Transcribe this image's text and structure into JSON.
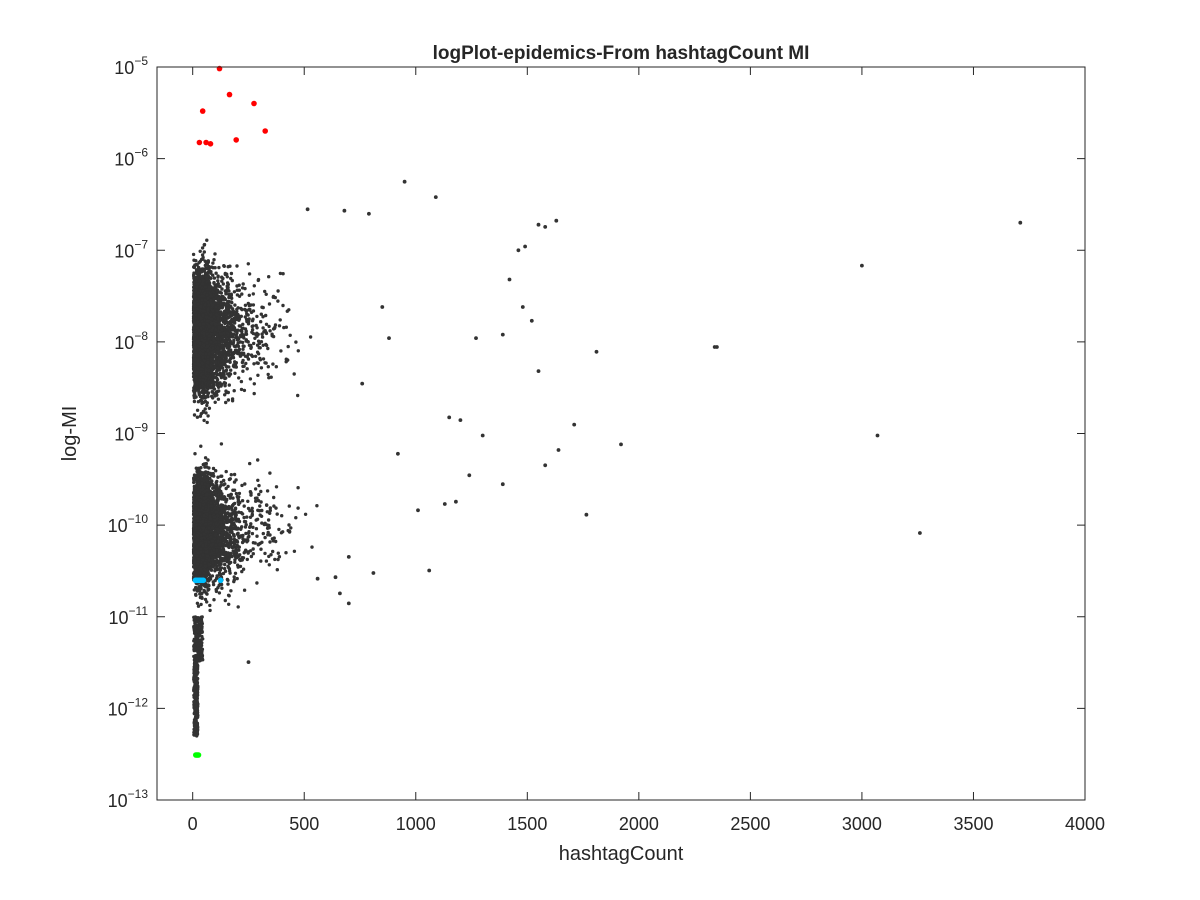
{
  "chart_data": {
    "type": "scatter",
    "title": "logPlot-epidemics-From hashtagCount MI",
    "xlabel": "hashtagCount",
    "ylabel": "log-MI",
    "xlim": [
      -160,
      4000
    ],
    "ylim": [
      1e-13,
      1e-05
    ],
    "y_scale": "log",
    "grid": false,
    "legend": "none",
    "x_ticks": [
      0,
      500,
      1000,
      1500,
      2000,
      2500,
      3000,
      3500,
      4000
    ],
    "x_tick_labels": [
      "0",
      "500",
      "1000",
      "1500",
      "2000",
      "2500",
      "3000",
      "3500",
      "4000"
    ],
    "y_tick_exponents": [
      -13,
      -12,
      -11,
      -10,
      -9,
      -8,
      -7,
      -6,
      -5
    ],
    "y_tick_base": "10",
    "colors": {
      "main": "#333333",
      "top": "#ff0000",
      "tie": "#00bfff",
      "min": "#00ff00",
      "axis": "#262626"
    },
    "series": [
      {
        "color_key": "top",
        "points": [
          [
            120,
            9.6e-06
          ],
          [
            165,
            5e-06
          ],
          [
            275,
            4e-06
          ],
          [
            45,
            3.3e-06
          ],
          [
            325,
            2e-06
          ],
          [
            195,
            1.6e-06
          ],
          [
            30,
            1.5e-06
          ],
          [
            60,
            1.5e-06
          ],
          [
            80,
            1.45e-06
          ]
        ]
      },
      {
        "color_key": "tie",
        "points": [
          [
            12,
            2.5e-11
          ],
          [
            18,
            2.5e-11
          ],
          [
            24,
            2.5e-11
          ],
          [
            30,
            2.5e-11
          ],
          [
            36,
            2.5e-11
          ],
          [
            42,
            2.5e-11
          ],
          [
            48,
            2.5e-11
          ],
          [
            125,
            2.5e-11
          ]
        ]
      },
      {
        "color_key": "min",
        "points": [
          [
            14,
            3.1e-13
          ],
          [
            18,
            3.1e-13
          ],
          [
            22,
            3.1e-13
          ],
          [
            26,
            3.1e-13
          ]
        ]
      },
      {
        "color_key": "main",
        "points": [
          [
            3710,
            2e-07
          ],
          [
            3000,
            6.8e-08
          ],
          [
            3070,
            9.5e-10
          ],
          [
            3260,
            8.2e-11
          ],
          [
            2340,
            8.8e-09
          ],
          [
            2350,
            8.8e-09
          ],
          [
            1810,
            7.8e-09
          ],
          [
            1920,
            7.6e-10
          ],
          [
            1710,
            1.25e-09
          ],
          [
            1765,
            1.3e-10
          ],
          [
            1630,
            2.1e-07
          ],
          [
            1580,
            1.8e-07
          ],
          [
            1550,
            1.9e-07
          ],
          [
            1520,
            1.7e-08
          ],
          [
            1490,
            1.1e-07
          ],
          [
            1460,
            1e-07
          ],
          [
            1420,
            4.8e-08
          ],
          [
            1550,
            4.8e-09
          ],
          [
            1640,
            6.6e-10
          ],
          [
            1580,
            4.5e-10
          ],
          [
            950,
            5.6e-07
          ],
          [
            1090,
            3.8e-07
          ],
          [
            515,
            2.8e-07
          ],
          [
            680,
            2.7e-07
          ],
          [
            790,
            2.5e-07
          ],
          [
            1060,
            3.2e-11
          ],
          [
            810,
            3e-11
          ],
          [
            700,
            1.4e-11
          ],
          [
            660,
            1.8e-11
          ],
          [
            640,
            2.7e-11
          ],
          [
            560,
            2.6e-11
          ],
          [
            250,
            3.2e-12
          ],
          [
            1390,
            2.8e-10
          ],
          [
            1240,
            3.5e-10
          ],
          [
            1180,
            1.8e-10
          ],
          [
            1130,
            1.7e-10
          ],
          [
            1300,
            9.5e-10
          ],
          [
            1480,
            2.4e-08
          ],
          [
            1390,
            1.2e-08
          ],
          [
            1270,
            1.1e-08
          ],
          [
            1200,
            1.4e-09
          ],
          [
            1150,
            1.5e-09
          ],
          [
            1010,
            1.45e-10
          ],
          [
            920,
            6e-10
          ],
          [
            880,
            1.1e-08
          ],
          [
            850,
            2.4e-08
          ],
          [
            760,
            3.5e-09
          ],
          [
            700,
            4.5e-11
          ]
        ]
      }
    ]
  }
}
